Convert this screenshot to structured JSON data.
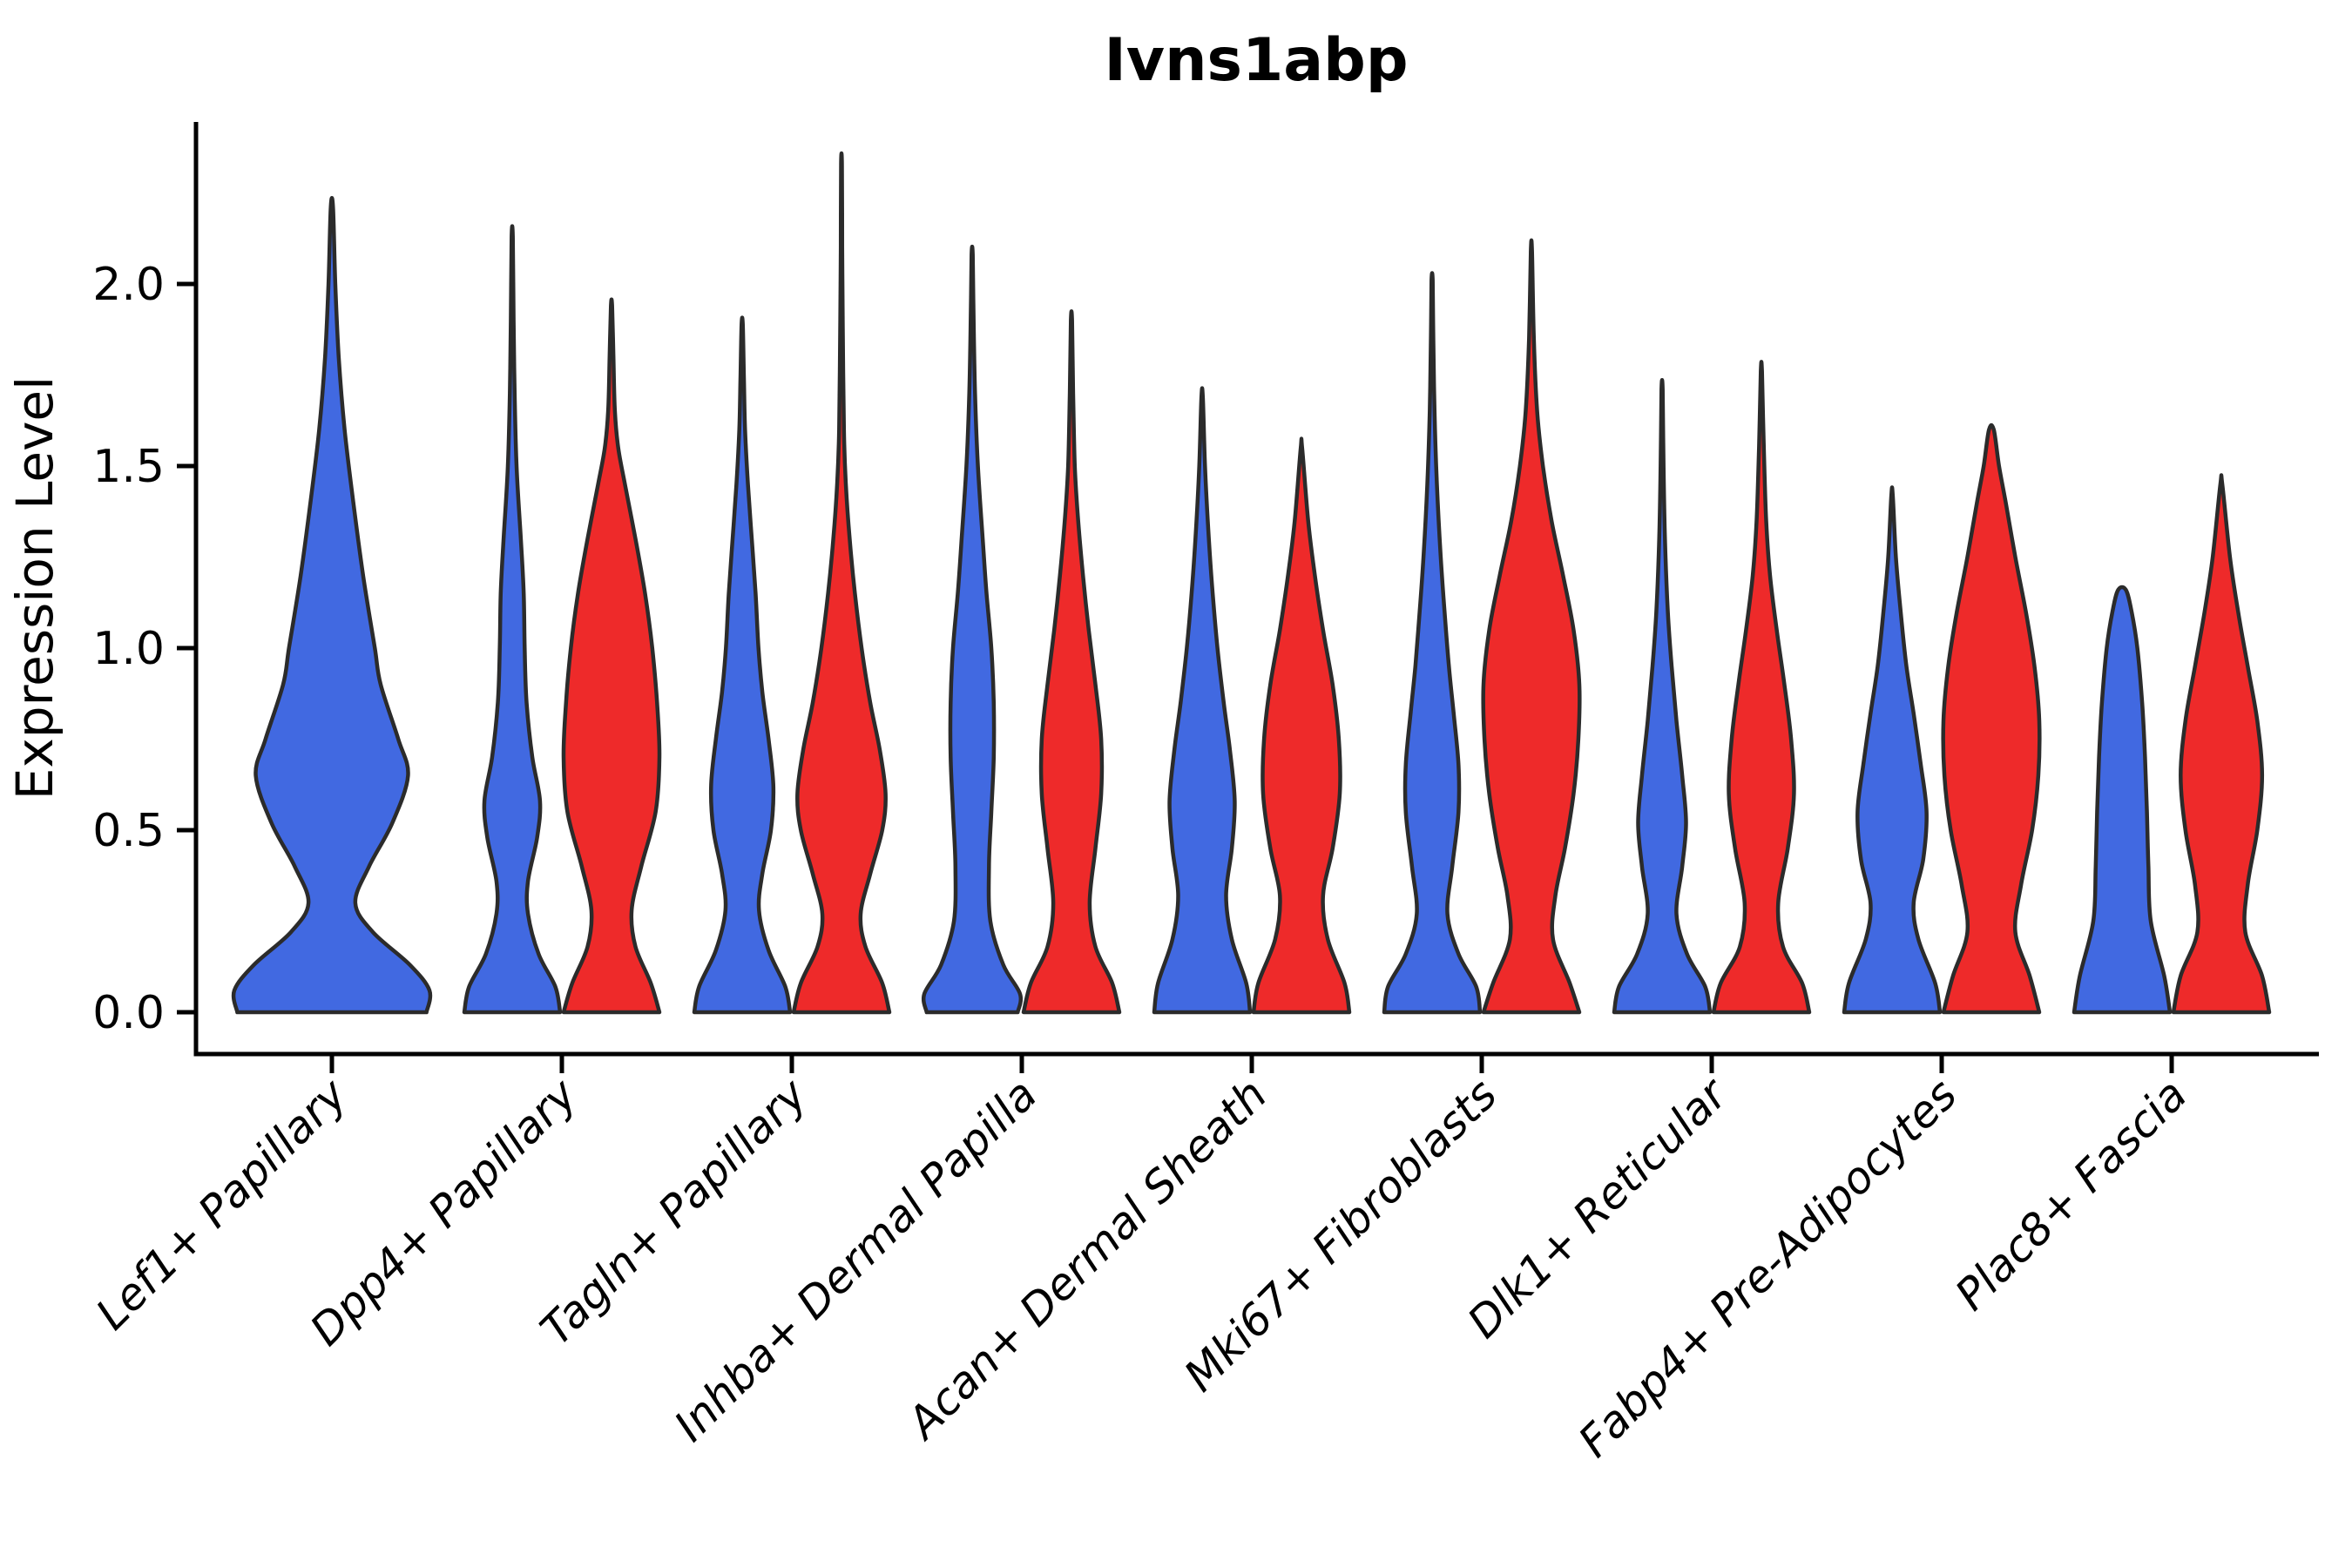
{
  "figure": {
    "title": "Ivns1abp",
    "y_axis_label": "Expression Level"
  },
  "style": {
    "background_color": "#ffffff",
    "axis_color": "#000000",
    "violin_outline_color": "#2b2b2b",
    "blue_fill": "#4169e1",
    "red_fill": "#ee2a2a",
    "text_color": "#000000"
  },
  "chart_data": {
    "type": "violin",
    "title": "Ivns1abp",
    "xlabel": "",
    "ylabel": "Expression Level",
    "ylim": [
      -0.12,
      2.45
    ],
    "yticks": [
      0.0,
      0.5,
      1.0,
      1.5,
      2.0
    ],
    "grid": false,
    "legend_position": "none",
    "split_violins": true,
    "categories": [
      "Lef1+ Papillary",
      "Dpp4+ Papillary",
      "Tagln+ Papillary",
      "Inhba+ Dermal Papilla",
      "Acan+ Dermal Sheath",
      "Mki67+ Fibroblasts",
      "Dlk1+ Reticular",
      "Fabp4+ Pre-Adipocytes",
      "Plac8+ Fascia"
    ],
    "groups": [
      {
        "id": "group1",
        "side": "left",
        "color": "#4169e1"
      },
      {
        "id": "group2",
        "side": "right",
        "color": "#ee2a2a"
      }
    ],
    "violins": [
      {
        "category": "Lef1+ Papillary",
        "group": "group1",
        "color": "#4169e1",
        "single": true,
        "max_expression": 2.21,
        "profile": [
          [
            0,
            0.97
          ],
          [
            0.06,
            1.0
          ],
          [
            0.13,
            0.8
          ],
          [
            0.22,
            0.42
          ],
          [
            0.3,
            0.24
          ],
          [
            0.4,
            0.38
          ],
          [
            0.52,
            0.62
          ],
          [
            0.65,
            0.78
          ],
          [
            0.75,
            0.68
          ],
          [
            0.9,
            0.5
          ],
          [
            1.0,
            0.44
          ],
          [
            1.2,
            0.32
          ],
          [
            1.4,
            0.22
          ],
          [
            1.6,
            0.13
          ],
          [
            1.8,
            0.07
          ],
          [
            2.0,
            0.035
          ],
          [
            2.21,
            0.012
          ]
        ]
      },
      {
        "category": "Dpp4+ Papillary",
        "group": "group1",
        "color": "#4169e1",
        "single": false,
        "max_expression": 2.13,
        "profile": [
          [
            0,
            1.0
          ],
          [
            0.07,
            0.9
          ],
          [
            0.16,
            0.55
          ],
          [
            0.27,
            0.33
          ],
          [
            0.36,
            0.33
          ],
          [
            0.48,
            0.52
          ],
          [
            0.58,
            0.58
          ],
          [
            0.7,
            0.42
          ],
          [
            0.85,
            0.3
          ],
          [
            1.0,
            0.26
          ],
          [
            1.15,
            0.24
          ],
          [
            1.3,
            0.18
          ],
          [
            1.5,
            0.09
          ],
          [
            1.7,
            0.05
          ],
          [
            1.9,
            0.03
          ],
          [
            2.13,
            0.012
          ]
        ]
      },
      {
        "category": "Dpp4+ Papillary",
        "group": "group2",
        "color": "#ee2a2a",
        "single": false,
        "max_expression": 1.94,
        "profile": [
          [
            0,
            1.0
          ],
          [
            0.08,
            0.82
          ],
          [
            0.18,
            0.5
          ],
          [
            0.28,
            0.42
          ],
          [
            0.4,
            0.62
          ],
          [
            0.55,
            0.92
          ],
          [
            0.7,
            1.0
          ],
          [
            0.85,
            0.95
          ],
          [
            1.0,
            0.85
          ],
          [
            1.15,
            0.7
          ],
          [
            1.3,
            0.5
          ],
          [
            1.45,
            0.28
          ],
          [
            1.55,
            0.14
          ],
          [
            1.65,
            0.07
          ],
          [
            1.8,
            0.04
          ],
          [
            1.94,
            0.012
          ]
        ]
      },
      {
        "category": "Tagln+ Papillary",
        "group": "group1",
        "color": "#4169e1",
        "single": false,
        "max_expression": 1.89,
        "profile": [
          [
            0,
            1.0
          ],
          [
            0.07,
            0.9
          ],
          [
            0.17,
            0.55
          ],
          [
            0.28,
            0.35
          ],
          [
            0.38,
            0.42
          ],
          [
            0.5,
            0.6
          ],
          [
            0.62,
            0.65
          ],
          [
            0.75,
            0.55
          ],
          [
            0.88,
            0.42
          ],
          [
            1.0,
            0.34
          ],
          [
            1.15,
            0.28
          ],
          [
            1.3,
            0.2
          ],
          [
            1.45,
            0.12
          ],
          [
            1.6,
            0.06
          ],
          [
            1.75,
            0.035
          ],
          [
            1.89,
            0.012
          ]
        ]
      },
      {
        "category": "Tagln+ Papillary",
        "group": "group2",
        "color": "#ee2a2a",
        "single": false,
        "max_expression": 2.33,
        "profile": [
          [
            0,
            1.0
          ],
          [
            0.08,
            0.85
          ],
          [
            0.18,
            0.5
          ],
          [
            0.27,
            0.4
          ],
          [
            0.38,
            0.6
          ],
          [
            0.5,
            0.85
          ],
          [
            0.6,
            0.92
          ],
          [
            0.72,
            0.8
          ],
          [
            0.85,
            0.6
          ],
          [
            1.0,
            0.42
          ],
          [
            1.15,
            0.28
          ],
          [
            1.3,
            0.17
          ],
          [
            1.45,
            0.09
          ],
          [
            1.6,
            0.05
          ],
          [
            1.9,
            0.025
          ],
          [
            2.1,
            0.015
          ],
          [
            2.33,
            0.01
          ]
        ]
      },
      {
        "category": "Inhba+ Dermal Papilla",
        "group": "group1",
        "color": "#4169e1",
        "single": false,
        "max_expression": 2.08,
        "profile": [
          [
            0,
            0.95
          ],
          [
            0.05,
            1.0
          ],
          [
            0.13,
            0.65
          ],
          [
            0.25,
            0.38
          ],
          [
            0.4,
            0.35
          ],
          [
            0.55,
            0.4
          ],
          [
            0.7,
            0.45
          ],
          [
            0.85,
            0.45
          ],
          [
            1.0,
            0.4
          ],
          [
            1.15,
            0.3
          ],
          [
            1.3,
            0.22
          ],
          [
            1.5,
            0.12
          ],
          [
            1.7,
            0.06
          ],
          [
            1.9,
            0.03
          ],
          [
            2.08,
            0.012
          ]
        ]
      },
      {
        "category": "Inhba+ Dermal Papilla",
        "group": "group2",
        "color": "#ee2a2a",
        "single": false,
        "max_expression": 1.9,
        "profile": [
          [
            0,
            1.0
          ],
          [
            0.08,
            0.85
          ],
          [
            0.18,
            0.5
          ],
          [
            0.3,
            0.38
          ],
          [
            0.45,
            0.5
          ],
          [
            0.6,
            0.62
          ],
          [
            0.75,
            0.62
          ],
          [
            0.9,
            0.5
          ],
          [
            1.05,
            0.36
          ],
          [
            1.2,
            0.24
          ],
          [
            1.35,
            0.14
          ],
          [
            1.5,
            0.07
          ],
          [
            1.7,
            0.035
          ],
          [
            1.9,
            0.012
          ]
        ]
      },
      {
        "category": "Acan+ Dermal Sheath",
        "group": "group1",
        "color": "#4169e1",
        "single": false,
        "max_expression": 1.69,
        "profile": [
          [
            0,
            1.0
          ],
          [
            0.08,
            0.92
          ],
          [
            0.2,
            0.62
          ],
          [
            0.32,
            0.5
          ],
          [
            0.45,
            0.62
          ],
          [
            0.58,
            0.68
          ],
          [
            0.72,
            0.58
          ],
          [
            0.85,
            0.45
          ],
          [
            1.0,
            0.32
          ],
          [
            1.15,
            0.22
          ],
          [
            1.3,
            0.14
          ],
          [
            1.5,
            0.06
          ],
          [
            1.69,
            0.015
          ]
        ]
      },
      {
        "category": "Acan+ Dermal Sheath",
        "group": "group2",
        "color": "#ee2a2a",
        "single": false,
        "max_expression": 1.55,
        "profile": [
          [
            0,
            1.0
          ],
          [
            0.08,
            0.9
          ],
          [
            0.2,
            0.55
          ],
          [
            0.32,
            0.45
          ],
          [
            0.45,
            0.65
          ],
          [
            0.6,
            0.8
          ],
          [
            0.75,
            0.78
          ],
          [
            0.9,
            0.65
          ],
          [
            1.05,
            0.45
          ],
          [
            1.2,
            0.28
          ],
          [
            1.35,
            0.14
          ],
          [
            1.55,
            0.015
          ]
        ]
      },
      {
        "category": "Mki67+ Fibroblasts",
        "group": "group1",
        "color": "#4169e1",
        "single": false,
        "max_expression": 2.01,
        "profile": [
          [
            0,
            1.0
          ],
          [
            0.07,
            0.92
          ],
          [
            0.16,
            0.55
          ],
          [
            0.27,
            0.32
          ],
          [
            0.4,
            0.42
          ],
          [
            0.55,
            0.55
          ],
          [
            0.68,
            0.55
          ],
          [
            0.82,
            0.45
          ],
          [
            0.95,
            0.35
          ],
          [
            1.1,
            0.26
          ],
          [
            1.25,
            0.18
          ],
          [
            1.45,
            0.1
          ],
          [
            1.65,
            0.05
          ],
          [
            1.85,
            0.025
          ],
          [
            2.01,
            0.012
          ]
        ]
      },
      {
        "category": "Mki67+ Fibroblasts",
        "group": "group2",
        "color": "#ee2a2a",
        "single": false,
        "max_expression": 2.09,
        "profile": [
          [
            0,
            1.0
          ],
          [
            0.08,
            0.8
          ],
          [
            0.2,
            0.45
          ],
          [
            0.32,
            0.5
          ],
          [
            0.45,
            0.7
          ],
          [
            0.6,
            0.88
          ],
          [
            0.75,
            0.98
          ],
          [
            0.9,
            1.0
          ],
          [
            1.05,
            0.88
          ],
          [
            1.2,
            0.66
          ],
          [
            1.35,
            0.42
          ],
          [
            1.5,
            0.24
          ],
          [
            1.65,
            0.12
          ],
          [
            1.85,
            0.05
          ],
          [
            2.09,
            0.012
          ]
        ]
      },
      {
        "category": "Dlk1+ Reticular",
        "group": "group1",
        "color": "#4169e1",
        "single": false,
        "max_expression": 1.71,
        "profile": [
          [
            0,
            1.0
          ],
          [
            0.07,
            0.9
          ],
          [
            0.16,
            0.52
          ],
          [
            0.27,
            0.3
          ],
          [
            0.4,
            0.42
          ],
          [
            0.52,
            0.5
          ],
          [
            0.65,
            0.42
          ],
          [
            0.8,
            0.3
          ],
          [
            0.95,
            0.2
          ],
          [
            1.1,
            0.12
          ],
          [
            1.3,
            0.06
          ],
          [
            1.5,
            0.03
          ],
          [
            1.71,
            0.012
          ]
        ]
      },
      {
        "category": "Dlk1+ Reticular",
        "group": "group2",
        "color": "#ee2a2a",
        "single": false,
        "max_expression": 1.76,
        "profile": [
          [
            0,
            1.0
          ],
          [
            0.08,
            0.85
          ],
          [
            0.18,
            0.45
          ],
          [
            0.3,
            0.35
          ],
          [
            0.45,
            0.55
          ],
          [
            0.6,
            0.68
          ],
          [
            0.75,
            0.62
          ],
          [
            0.9,
            0.48
          ],
          [
            1.05,
            0.32
          ],
          [
            1.2,
            0.18
          ],
          [
            1.35,
            0.1
          ],
          [
            1.55,
            0.05
          ],
          [
            1.76,
            0.012
          ]
        ]
      },
      {
        "category": "Fabp4+ Pre-Adipocytes",
        "group": "group1",
        "color": "#4169e1",
        "single": false,
        "max_expression": 1.42,
        "profile": [
          [
            0,
            1.0
          ],
          [
            0.08,
            0.9
          ],
          [
            0.2,
            0.55
          ],
          [
            0.3,
            0.45
          ],
          [
            0.42,
            0.65
          ],
          [
            0.55,
            0.72
          ],
          [
            0.68,
            0.6
          ],
          [
            0.82,
            0.45
          ],
          [
            0.95,
            0.3
          ],
          [
            1.1,
            0.18
          ],
          [
            1.25,
            0.08
          ],
          [
            1.42,
            0.015
          ]
        ]
      },
      {
        "category": "Fabp4+ Pre-Adipocytes",
        "group": "group2",
        "color": "#ee2a2a",
        "single": false,
        "max_expression": 1.6,
        "profile": [
          [
            0,
            1.0
          ],
          [
            0.1,
            0.8
          ],
          [
            0.22,
            0.5
          ],
          [
            0.35,
            0.62
          ],
          [
            0.5,
            0.85
          ],
          [
            0.65,
            0.98
          ],
          [
            0.8,
            1.0
          ],
          [
            0.95,
            0.9
          ],
          [
            1.1,
            0.72
          ],
          [
            1.25,
            0.5
          ],
          [
            1.4,
            0.3
          ],
          [
            1.5,
            0.16
          ],
          [
            1.6,
            0.05
          ]
        ]
      },
      {
        "category": "Plac8+ Fascia",
        "group": "group1",
        "color": "#4169e1",
        "single": false,
        "max_expression": 1.16,
        "profile": [
          [
            0,
            1.0
          ],
          [
            0.1,
            0.88
          ],
          [
            0.25,
            0.6
          ],
          [
            0.4,
            0.55
          ],
          [
            0.55,
            0.52
          ],
          [
            0.7,
            0.48
          ],
          [
            0.85,
            0.42
          ],
          [
            1.0,
            0.32
          ],
          [
            1.1,
            0.2
          ],
          [
            1.16,
            0.08
          ]
        ]
      },
      {
        "category": "Plac8+ Fascia",
        "group": "group2",
        "color": "#ee2a2a",
        "single": false,
        "max_expression": 1.45,
        "profile": [
          [
            0,
            1.0
          ],
          [
            0.1,
            0.85
          ],
          [
            0.22,
            0.5
          ],
          [
            0.35,
            0.55
          ],
          [
            0.5,
            0.75
          ],
          [
            0.65,
            0.85
          ],
          [
            0.8,
            0.75
          ],
          [
            0.95,
            0.55
          ],
          [
            1.1,
            0.35
          ],
          [
            1.25,
            0.18
          ],
          [
            1.45,
            0.02
          ]
        ]
      }
    ]
  }
}
